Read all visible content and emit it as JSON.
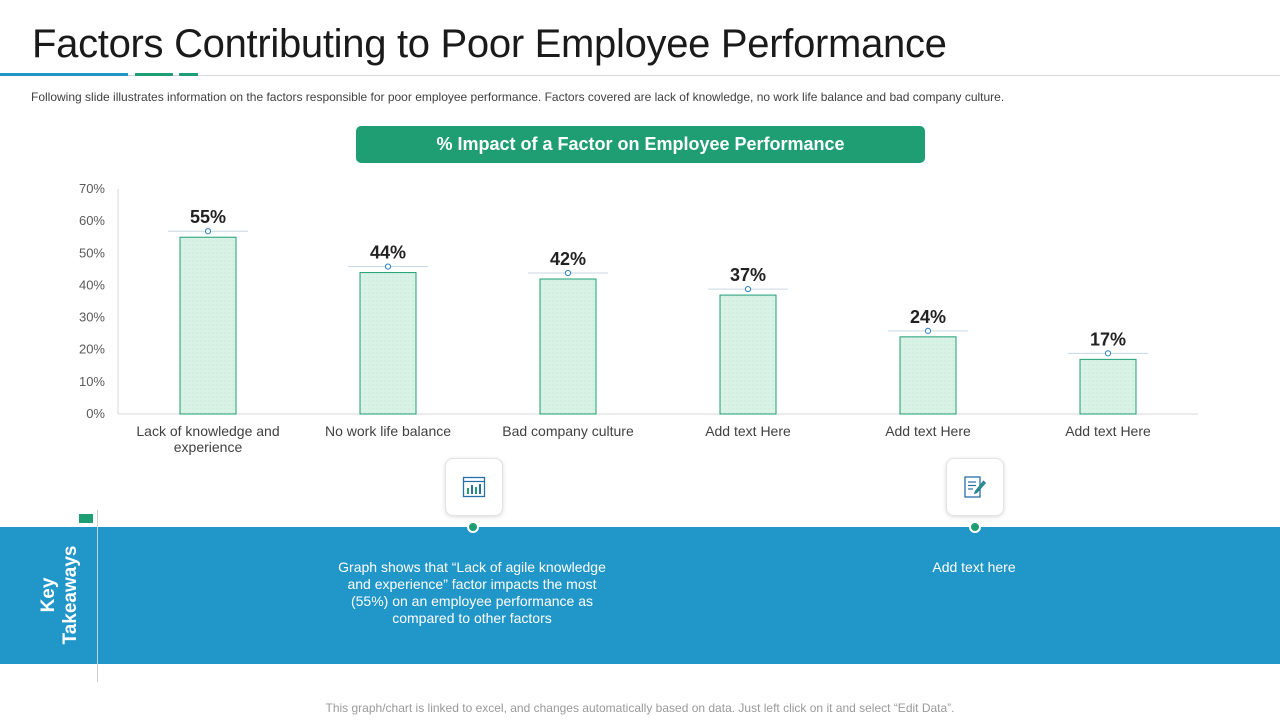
{
  "header": {
    "title": "Factors Contributing to Poor Employee Performance",
    "subtitle": "Following slide illustrates information on the factors responsible for poor employee performance. Factors covered are lack of knowledge, no work life balance and bad company culture."
  },
  "chart_banner": "% Impact of  a Factor on Employee Performance",
  "chart_data": {
    "type": "bar",
    "title": "% Impact of  a Factor on Employee Performance",
    "categories": [
      "Lack of  knowledge and experience",
      "No work life balance",
      "Bad company culture",
      "Add text Here",
      "Add text Here",
      "Add text Here"
    ],
    "category_lines": [
      [
        "Lack of  knowledge and",
        "experience"
      ],
      [
        "No work life balance"
      ],
      [
        "Bad company culture"
      ],
      [
        "Add text Here"
      ],
      [
        "Add text Here"
      ],
      [
        "Add text Here"
      ]
    ],
    "values": [
      55,
      44,
      42,
      37,
      24,
      17
    ],
    "value_labels": [
      "55%",
      "44%",
      "42%",
      "37%",
      "24%",
      "17%"
    ],
    "ylim": [
      0,
      70
    ],
    "yticks": [
      0,
      10,
      20,
      30,
      40,
      50,
      60,
      70
    ],
    "ytick_labels": [
      "0%",
      "10%",
      "20%",
      "30%",
      "40%",
      "50%",
      "60%",
      "70%"
    ],
    "xlabel": "",
    "ylabel": "",
    "grid": false,
    "bar_fill": "#d9f2e6",
    "bar_stroke": "#1f9e73"
  },
  "key_takeaways": {
    "label": "Key Takeaways",
    "label_lines": [
      "Key",
      "Takeaways"
    ],
    "items": [
      {
        "icon": "chart-report-icon",
        "text_lines": [
          "Graph shows that “Lack of agile knowledge",
          "and experience” factor impacts the most",
          "(55%) on an employee performance as",
          "compared to other factors"
        ]
      },
      {
        "icon": "document-edit-icon",
        "text_lines": [
          "Add text here"
        ]
      }
    ]
  },
  "footer": "This graph/chart is linked to excel, and changes automatically based on data. Just left click on it and select “Edit Data”.",
  "colors": {
    "accent_green": "#1f9e73",
    "accent_blue": "#2196c9",
    "title_accent_blue": "#2196c9"
  }
}
